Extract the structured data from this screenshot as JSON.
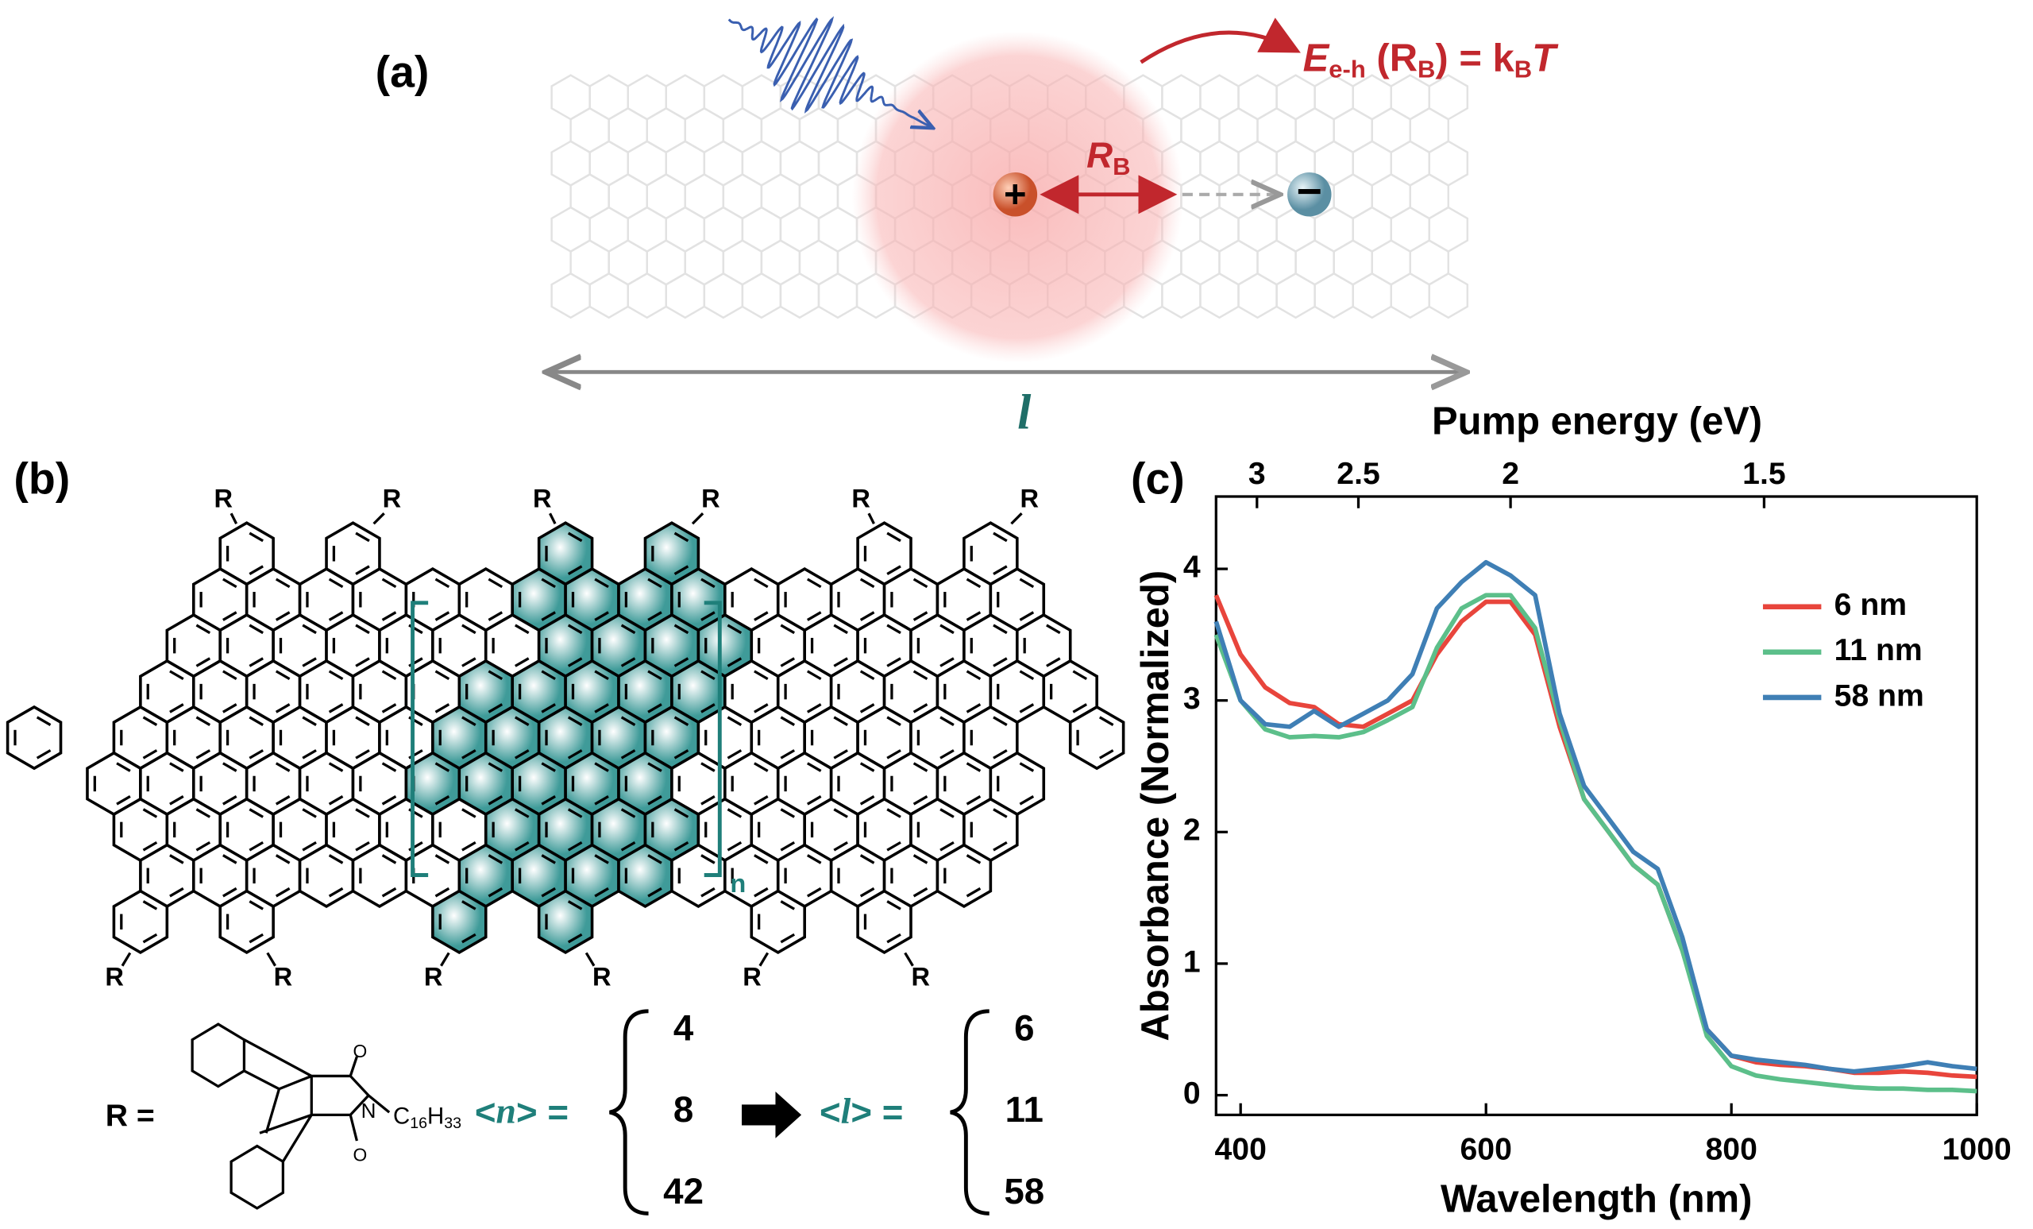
{
  "figure": {
    "panel_labels": [
      "(a)",
      "(b)",
      "(c)"
    ],
    "schematic": {
      "equation": [
        "E",
        "e-h",
        " (R",
        "B",
        ") = k",
        "B",
        "T"
      ],
      "radius": [
        "R",
        "B"
      ],
      "hole": "+",
      "electron": "−",
      "length": "l"
    },
    "structure": {
      "substituent": "R",
      "repeat": "n",
      "formula_lhs": "R =",
      "alkyl": [
        "C",
        "16",
        "H",
        "33"
      ],
      "n_label": [
        "<",
        "n",
        "> ="
      ],
      "n_values": [
        4,
        8,
        42
      ],
      "l_label": [
        "<",
        "l",
        "> ="
      ],
      "l_values": [
        6,
        11,
        58
      ]
    }
  },
  "chart_data": {
    "type": "line",
    "xlabel": "Wavelength (nm)",
    "x2label": "Pump energy (eV)",
    "ylabel": "Absorbance (Normalized)",
    "x": [
      380,
      400,
      420,
      440,
      460,
      480,
      500,
      520,
      540,
      560,
      580,
      600,
      620,
      640,
      660,
      680,
      700,
      720,
      740,
      760,
      780,
      800,
      820,
      840,
      860,
      880,
      900,
      920,
      940,
      960,
      980,
      1000
    ],
    "series": [
      {
        "name": "6 nm",
        "color": "#e8453c",
        "values": [
          3.8,
          3.35,
          3.1,
          2.98,
          2.95,
          2.82,
          2.8,
          2.9,
          3.0,
          3.35,
          3.6,
          3.75,
          3.75,
          3.5,
          2.8,
          2.25,
          2.0,
          1.75,
          1.6,
          1.1,
          0.5,
          0.3,
          0.25,
          0.23,
          0.22,
          0.2,
          0.17,
          0.17,
          0.18,
          0.17,
          0.15,
          0.14
        ]
      },
      {
        "name": "11 nm",
        "color": "#5cbf8a",
        "values": [
          3.5,
          3.0,
          2.78,
          2.72,
          2.73,
          2.72,
          2.76,
          2.85,
          2.95,
          3.4,
          3.7,
          3.8,
          3.8,
          3.55,
          2.85,
          2.25,
          2.0,
          1.75,
          1.6,
          1.1,
          0.45,
          0.22,
          0.15,
          0.12,
          0.1,
          0.08,
          0.06,
          0.05,
          0.05,
          0.04,
          0.04,
          0.03
        ]
      },
      {
        "name": "58 nm",
        "color": "#3f7fb5",
        "values": [
          3.6,
          3.0,
          2.82,
          2.8,
          2.92,
          2.8,
          2.9,
          3.0,
          3.2,
          3.7,
          3.9,
          4.05,
          3.95,
          3.8,
          2.9,
          2.35,
          2.1,
          1.85,
          1.72,
          1.2,
          0.5,
          0.3,
          0.27,
          0.25,
          0.23,
          0.2,
          0.18,
          0.2,
          0.22,
          0.25,
          0.22,
          0.2
        ]
      }
    ],
    "xlim": [
      380,
      1000
    ],
    "xticks": [
      400,
      600,
      800,
      1000
    ],
    "x2ticks": [
      3,
      2.5,
      2,
      1.5
    ],
    "ylim": [
      -0.15,
      4.55
    ],
    "yticks": [
      0,
      1,
      2,
      3,
      4
    ],
    "grid": false,
    "legend": "upper right"
  }
}
